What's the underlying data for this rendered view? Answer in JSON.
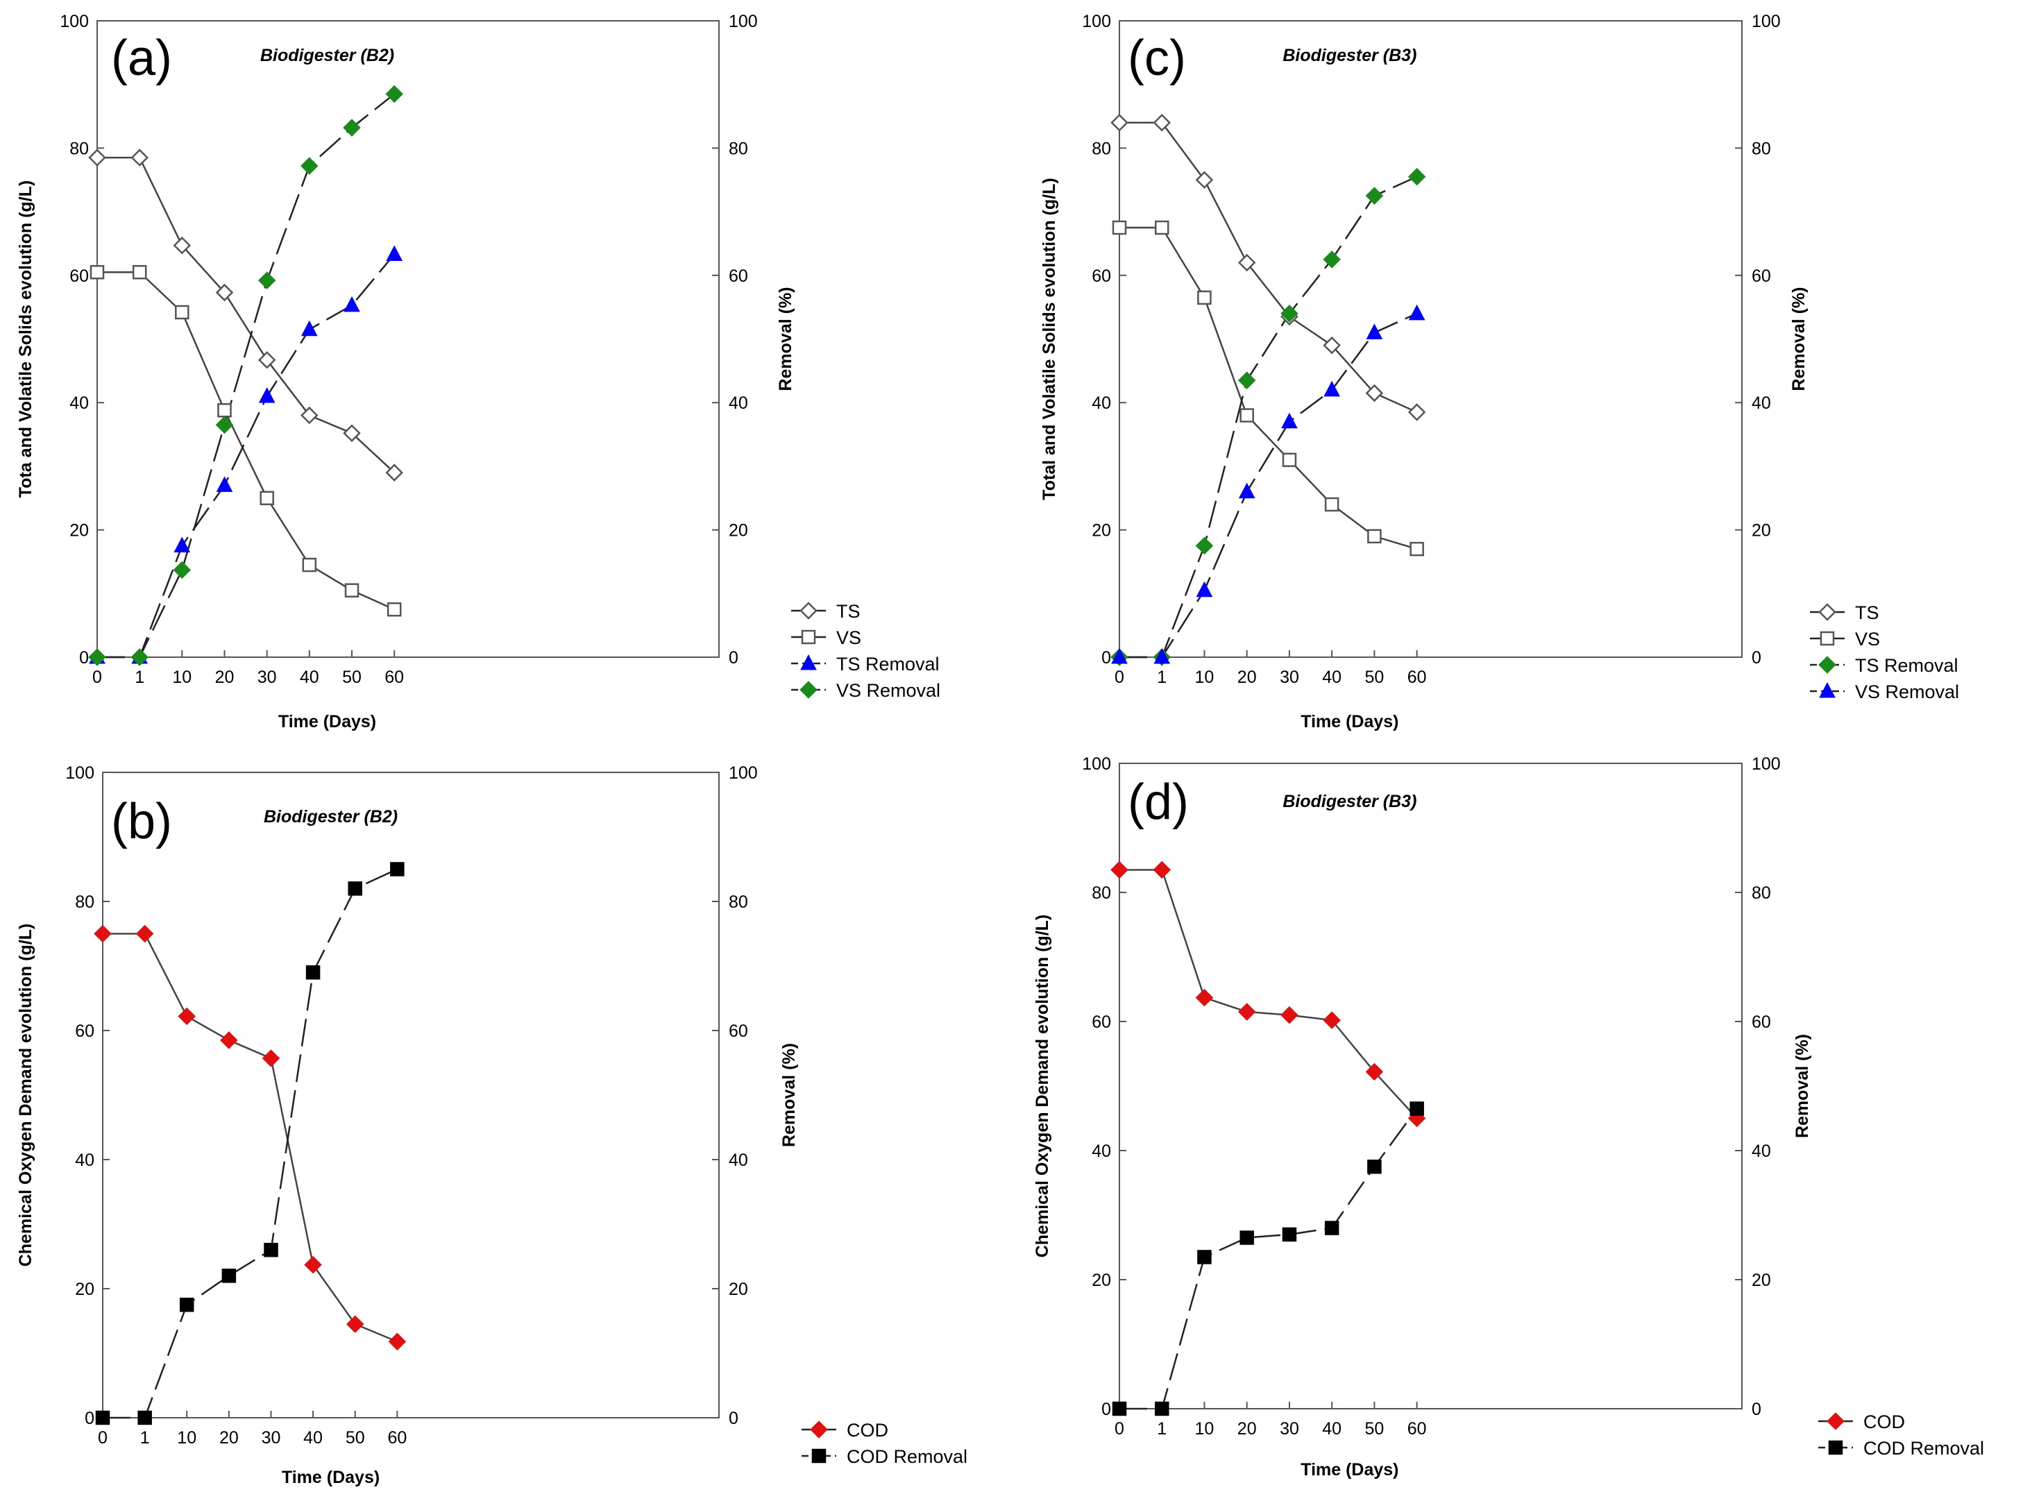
{
  "chart_data": [
    {
      "type": "line",
      "panel_label": "(a)",
      "title": "Biodigester (B2)",
      "categories": [
        "0",
        "1",
        "10",
        "20",
        "30",
        "40",
        "50",
        "60"
      ],
      "xlabel": "Time (Days)",
      "ylabel": "Tota and Volatile Solids evolution (g/L)",
      "y2label": "Removal (%)",
      "ylim": [
        0,
        100
      ],
      "y2lim": [
        0,
        100
      ],
      "yticks": [
        0,
        20,
        40,
        60,
        80,
        100
      ],
      "y2ticks": [
        0,
        20,
        40,
        60,
        80,
        100
      ],
      "legend_position": "bottom-right outside",
      "series": [
        {
          "name": "TS",
          "axis": "left",
          "line": "solid",
          "marker": "diamond-open",
          "color": "#000000",
          "values": [
            78.5,
            78.5,
            64.7,
            57.3,
            46.7,
            38,
            35.2,
            29
          ]
        },
        {
          "name": "VS",
          "axis": "left",
          "line": "solid",
          "marker": "square-open",
          "color": "#000000",
          "values": [
            60.5,
            60.5,
            54.2,
            38.8,
            25,
            14.5,
            10.5,
            7.5
          ]
        },
        {
          "name": "TS Removal",
          "axis": "right",
          "line": "dashed",
          "marker": "triangle",
          "color": "#0000ff",
          "values": [
            0,
            0,
            17.5,
            27,
            41,
            51.5,
            55.3,
            63.3
          ]
        },
        {
          "name": "VS Removal",
          "axis": "right",
          "line": "dashed",
          "marker": "diamond",
          "color": "#1a8a1a",
          "values": [
            0,
            0,
            13.7,
            36.5,
            59.2,
            77.2,
            83.2,
            88.5
          ]
        }
      ]
    },
    {
      "type": "line",
      "panel_label": "(b)",
      "title": "Biodigester (B2)",
      "categories": [
        "0",
        "1",
        "10",
        "20",
        "30",
        "40",
        "50",
        "60"
      ],
      "xlabel": "Time (Days)",
      "ylabel": "Chemical Oxygen Demand evolution (g/L)",
      "y2label": "Removal (%)",
      "ylim": [
        0,
        100
      ],
      "y2lim": [
        0,
        100
      ],
      "yticks": [
        0,
        20,
        40,
        60,
        80,
        100
      ],
      "y2ticks": [
        0,
        20,
        40,
        60,
        80,
        100
      ],
      "legend_position": "bottom-right outside",
      "series": [
        {
          "name": "COD",
          "axis": "left",
          "line": "solid",
          "marker": "diamond",
          "color": "#e01010",
          "values": [
            75,
            75,
            62.2,
            58.5,
            55.7,
            23.7,
            14.5,
            11.8
          ]
        },
        {
          "name": "COD Removal",
          "axis": "right",
          "line": "dashed",
          "marker": "square",
          "color": "#000000",
          "values": [
            0,
            0,
            17.5,
            22,
            26,
            69,
            82,
            85
          ]
        }
      ]
    },
    {
      "type": "line",
      "panel_label": "(c)",
      "title": "Biodigester (B3)",
      "categories": [
        "0",
        "1",
        "10",
        "20",
        "30",
        "40",
        "50",
        "60"
      ],
      "xlabel": "Time (Days)",
      "ylabel": "Total and Volatile Solids evolution (g/L)",
      "y2label": "Removal (%)",
      "ylim": [
        0,
        100
      ],
      "y2lim": [
        0,
        100
      ],
      "yticks": [
        0,
        20,
        40,
        60,
        80,
        100
      ],
      "y2ticks": [
        0,
        20,
        40,
        60,
        80,
        100
      ],
      "legend_position": "bottom-right outside",
      "series": [
        {
          "name": "TS",
          "axis": "left",
          "line": "solid",
          "marker": "diamond-open",
          "color": "#000000",
          "values": [
            84,
            84,
            75,
            62,
            53.5,
            49,
            41.5,
            38.5
          ]
        },
        {
          "name": "VS",
          "axis": "left",
          "line": "solid",
          "marker": "square-open",
          "color": "#000000",
          "values": [
            67.5,
            67.5,
            56.5,
            38,
            31,
            24,
            19,
            17
          ]
        },
        {
          "name": "TS Removal",
          "axis": "right",
          "line": "dashed",
          "marker": "diamond",
          "color": "#1a8a1a",
          "values": [
            0,
            0,
            17.5,
            43.5,
            54,
            62.5,
            72.5,
            75.5
          ]
        },
        {
          "name": "VS Removal",
          "axis": "right",
          "line": "dashed",
          "marker": "triangle",
          "color": "#0000ff",
          "values": [
            0,
            0,
            10.5,
            26,
            37,
            42,
            51,
            54
          ]
        }
      ]
    },
    {
      "type": "line",
      "panel_label": "(d)",
      "title": "Biodigester (B3)",
      "categories": [
        "0",
        "1",
        "10",
        "20",
        "30",
        "40",
        "50",
        "60"
      ],
      "xlabel": "Time (Days)",
      "ylabel": "Chemical Oxygen Demand evolution (g/L)",
      "y2label": "Removal (%)",
      "ylim": [
        0,
        100
      ],
      "y2lim": [
        0,
        100
      ],
      "yticks": [
        0,
        20,
        40,
        60,
        80,
        100
      ],
      "y2ticks": [
        0,
        20,
        40,
        60,
        80,
        100
      ],
      "legend_position": "bottom-right outside",
      "series": [
        {
          "name": "COD",
          "axis": "left",
          "line": "solid",
          "marker": "diamond",
          "color": "#e01010",
          "values": [
            83.5,
            83.5,
            63.7,
            61.5,
            61,
            60.2,
            52.2,
            45
          ]
        },
        {
          "name": "COD Removal",
          "axis": "right",
          "line": "dashed",
          "marker": "square",
          "color": "#000000",
          "values": [
            0,
            0,
            23.5,
            26.5,
            27,
            28,
            37.5,
            46.5
          ]
        }
      ]
    }
  ]
}
